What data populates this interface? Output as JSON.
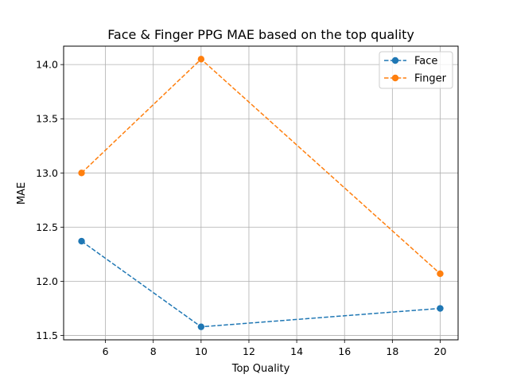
{
  "chart_data": {
    "type": "line",
    "title": "Face & Finger PPG MAE based on the top quality",
    "xlabel": "Top Quality",
    "ylabel": "MAE",
    "x": [
      5,
      10,
      20
    ],
    "xlim": [
      4.25,
      20.75
    ],
    "ylim": [
      11.46,
      14.17
    ],
    "xticks": [
      6,
      8,
      10,
      12,
      14,
      16,
      18,
      20
    ],
    "xtick_labels": [
      "6",
      "8",
      "10",
      "12",
      "14",
      "16",
      "18",
      "20"
    ],
    "yticks": [
      11.5,
      12.0,
      12.5,
      13.0,
      13.5,
      14.0
    ],
    "ytick_labels": [
      "11.5",
      "12.0",
      "12.5",
      "13.0",
      "13.5",
      "14.0"
    ],
    "grid": true,
    "legend_position": "top-right",
    "series": [
      {
        "name": "Face",
        "values": [
          12.37,
          11.58,
          11.75
        ],
        "color": "#1f77b4",
        "linestyle": "dashed",
        "marker": "circle"
      },
      {
        "name": "Finger",
        "values": [
          13.0,
          14.05,
          12.07
        ],
        "color": "#ff7f0e",
        "linestyle": "dashed",
        "marker": "circle"
      }
    ]
  }
}
